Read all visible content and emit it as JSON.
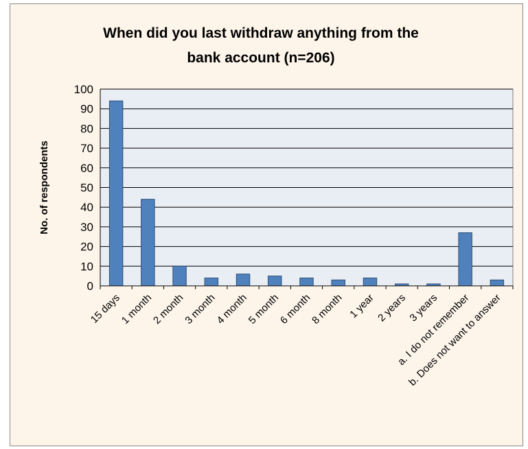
{
  "chart_data": {
    "type": "bar",
    "title_lines": [
      "When did you last withdraw anything from the",
      "bank account (n=206)"
    ],
    "xlabel": "",
    "ylabel": "No. of respondents",
    "ylim": [
      0,
      100
    ],
    "ytick_step": 10,
    "grid": true,
    "legend": "none",
    "categories": [
      "15 days",
      "1 month",
      "2 month",
      "3 month",
      "4 month",
      "5 month",
      "6 month",
      "8 month",
      "1 year",
      "2 years",
      "3 years",
      "a. I do not remember",
      "b. Does not want to answer"
    ],
    "values": [
      94,
      44,
      10,
      4,
      6,
      5,
      4,
      3,
      4,
      1,
      1,
      27,
      3
    ],
    "colors": {
      "bar_fill": "#4f81bd",
      "bar_stroke": "#2c4d75",
      "plot_background": "#e9edf4",
      "grid": "#000000",
      "frame_background": "#fdf5ea"
    }
  }
}
